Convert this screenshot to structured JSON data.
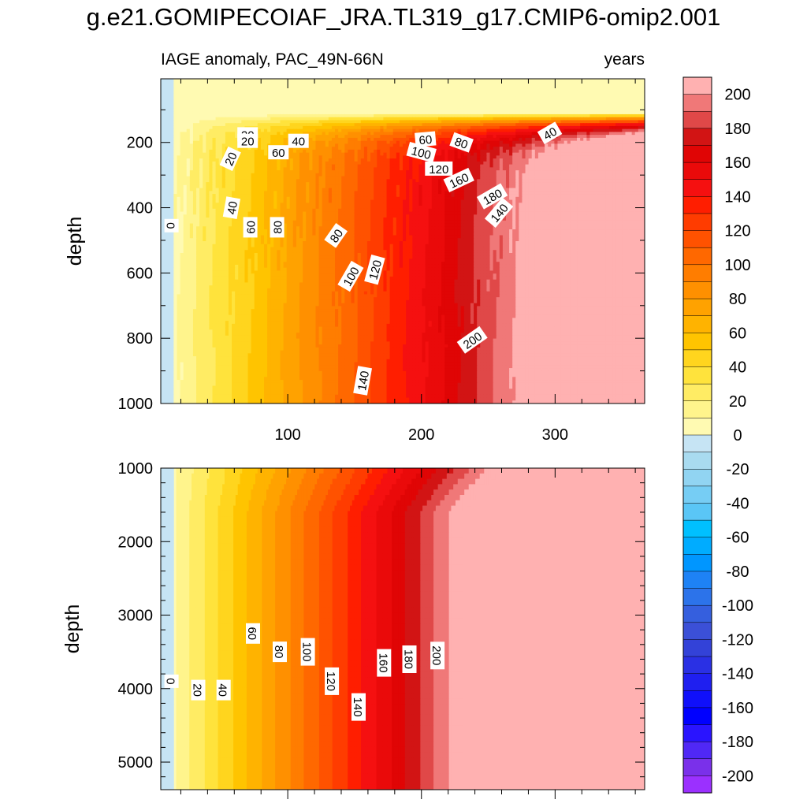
{
  "title": "g.e21.GOMIPECOIAF_JRA.TL319_g17.CMIP6-omip2.001",
  "chart_data": [
    {
      "type": "heatmap",
      "panel": "upper",
      "subtitle_left": "IAGE anomaly, PAC_49N-66N",
      "subtitle_right": "years",
      "xlabel": "",
      "ylabel": "depth",
      "xlim": [
        5,
        367
      ],
      "ylim": [
        1000,
        5
      ],
      "x_ticks": [
        "100",
        "200",
        "300"
      ],
      "y_ticks": [
        "200",
        "400",
        "600",
        "800",
        "1000"
      ],
      "contour_labels": [
        "0",
        "20",
        "20",
        "20",
        "40",
        "40",
        "40",
        "60",
        "60",
        "60",
        "80",
        "80",
        "80",
        "100",
        "100",
        "120",
        "120",
        "140",
        "140",
        "160",
        "180",
        "200"
      ]
    },
    {
      "type": "heatmap",
      "panel": "lower",
      "xlabel": "",
      "ylabel": "depth",
      "xlim": [
        5,
        367
      ],
      "ylim": [
        5375,
        1000
      ],
      "y_ticks": [
        "1000",
        "2000",
        "3000",
        "4000",
        "5000"
      ],
      "contour_labels": [
        "0",
        "20",
        "40",
        "60",
        "80",
        "100",
        "120",
        "140",
        "160",
        "180",
        "200"
      ]
    }
  ],
  "colorbar": {
    "levels": [
      -210,
      -200,
      -190,
      -180,
      -170,
      -160,
      -150,
      -140,
      -130,
      -120,
      -110,
      -100,
      -90,
      -80,
      -70,
      -60,
      -50,
      -40,
      -30,
      -20,
      -10,
      0,
      10,
      20,
      30,
      40,
      50,
      60,
      70,
      80,
      90,
      100,
      110,
      120,
      130,
      140,
      150,
      160,
      170,
      180,
      190,
      200,
      210
    ],
    "labels": [
      "200",
      "180",
      "160",
      "140",
      "120",
      "100",
      "80",
      "60",
      "40",
      "20",
      "0",
      "-20",
      "-40",
      "-60",
      "-80",
      "-100",
      "-120",
      "-140",
      "-160",
      "-180",
      "-200"
    ],
    "colors_top_to_bottom": [
      "#ffb1b1",
      "#f07878",
      "#e04848",
      "#d21414",
      "#e00505",
      "#ea0a0a",
      "#f51010",
      "#ff1e00",
      "#ff3c00",
      "#ff5200",
      "#ff6800",
      "#ff7d00",
      "#ff9000",
      "#ffa200",
      "#ffb300",
      "#ffc400",
      "#ffd51e",
      "#ffe33c",
      "#ffec64",
      "#fff48c",
      "#fffab2",
      "#c6e4f4",
      "#a9dbf0",
      "#91d4f2",
      "#76cdf4",
      "#5ac6f6",
      "#00c0ff",
      "#00acff",
      "#0096ff",
      "#1e82f5",
      "#2c73ea",
      "#355fde",
      "#3b50d7",
      "#3342d8",
      "#2a30e4",
      "#1f1ff0",
      "#1010fa",
      "#0000ff",
      "#2a14ff",
      "#5028f5",
      "#7a30ea",
      "#9b30ff"
    ]
  }
}
